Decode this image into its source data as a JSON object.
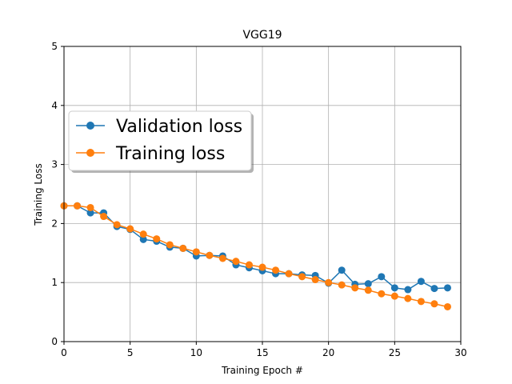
{
  "chart_data": {
    "type": "line",
    "title": "VGG19",
    "xlabel": "Training Epoch #",
    "ylabel": "Training Loss",
    "xlim": [
      0,
      30
    ],
    "ylim": [
      0,
      5
    ],
    "xticks": [
      0,
      5,
      10,
      15,
      20,
      25,
      30
    ],
    "yticks": [
      0,
      1,
      2,
      3,
      4,
      5
    ],
    "grid": true,
    "legend_position": "upper-left",
    "x": [
      0,
      1,
      2,
      3,
      4,
      5,
      6,
      7,
      8,
      9,
      10,
      11,
      12,
      13,
      14,
      15,
      16,
      17,
      18,
      19,
      20,
      21,
      22,
      23,
      24,
      25,
      26,
      27,
      28,
      29
    ],
    "series": [
      {
        "name": "Validation loss",
        "color": "#1f77b4",
        "values": [
          2.3,
          2.3,
          2.18,
          2.18,
          1.95,
          1.9,
          1.73,
          1.7,
          1.6,
          1.58,
          1.45,
          1.46,
          1.45,
          1.3,
          1.25,
          1.2,
          1.15,
          1.15,
          1.13,
          1.12,
          0.99,
          1.21,
          0.97,
          0.98,
          1.1,
          0.91,
          0.88,
          1.02,
          0.9,
          0.91
        ]
      },
      {
        "name": "Training loss",
        "color": "#ff7f0e",
        "values": [
          2.3,
          2.3,
          2.27,
          2.12,
          1.98,
          1.91,
          1.82,
          1.74,
          1.64,
          1.58,
          1.52,
          1.46,
          1.41,
          1.36,
          1.3,
          1.26,
          1.21,
          1.15,
          1.1,
          1.05,
          1.0,
          0.96,
          0.91,
          0.87,
          0.81,
          0.77,
          0.73,
          0.68,
          0.64,
          0.59
        ]
      }
    ]
  }
}
